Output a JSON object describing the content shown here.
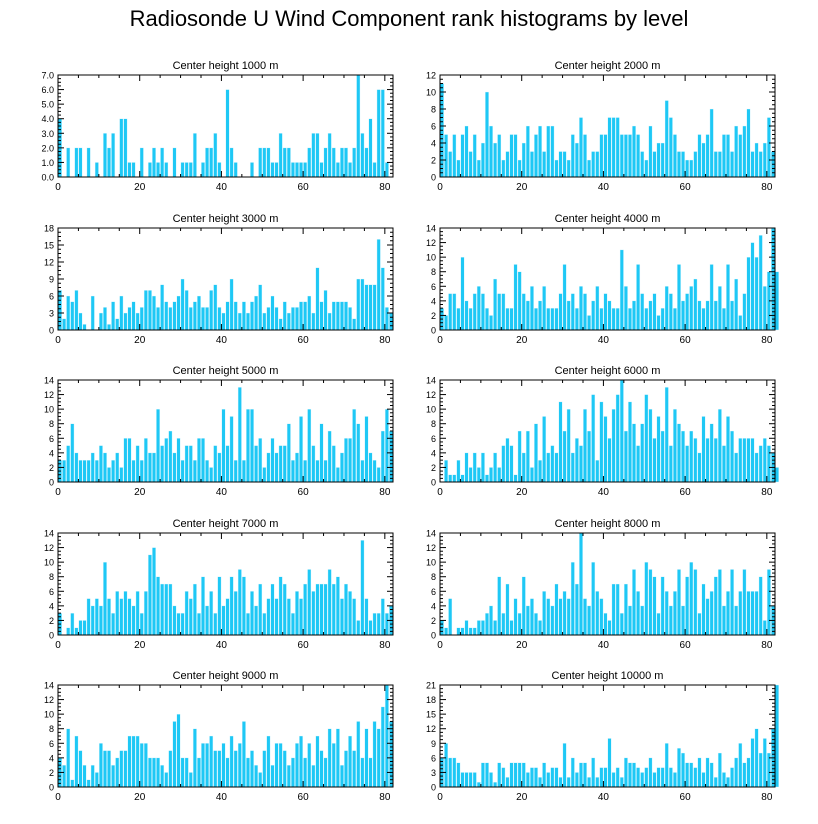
{
  "title": "Radiosonde U Wind Component rank histograms by level",
  "colors": {
    "bar": "#1ec8f5",
    "bar_edge": "#e8f8fe",
    "axis": "#000000"
  },
  "chart_data": [
    {
      "type": "bar",
      "title": "Center height 1000 m",
      "xlim": [
        0,
        82
      ],
      "ylim": [
        0,
        7.0
      ],
      "xticks": [
        0,
        20,
        40,
        60,
        80
      ],
      "yticks": [
        0.0,
        1.0,
        2.0,
        3.0,
        4.0,
        5.0,
        6.0,
        7.0
      ],
      "ytick_labels": [
        "0.0",
        "1.0",
        "2.0",
        "3.0",
        "4.0",
        "5.0",
        "6.0",
        "7.0"
      ],
      "values": [
        4,
        0,
        2,
        0,
        2,
        2,
        0,
        2,
        0,
        1,
        0,
        3,
        2,
        3,
        0,
        4,
        4,
        1,
        1,
        0,
        2,
        0,
        1,
        2,
        1,
        2,
        1,
        0,
        2,
        0,
        1,
        1,
        1,
        3,
        0,
        1,
        2,
        2,
        3,
        1,
        0,
        6,
        2,
        1,
        0,
        0,
        0,
        1,
        0,
        2,
        2,
        2,
        1,
        1,
        3,
        2,
        2,
        1,
        1,
        1,
        1,
        2,
        3,
        3,
        1,
        2,
        3,
        2,
        1,
        2,
        2,
        1,
        2,
        7,
        3,
        2,
        4,
        1,
        6,
        6,
        1
      ]
    },
    {
      "type": "bar",
      "title": "Center height 2000 m",
      "xlim": [
        0,
        82
      ],
      "ylim": [
        0,
        12
      ],
      "xticks": [
        0,
        20,
        40,
        60,
        80
      ],
      "yticks": [
        0,
        2,
        4,
        6,
        8,
        10,
        12
      ],
      "ytick_labels": [
        "0",
        "2",
        "4",
        "6",
        "8",
        "10",
        "12"
      ],
      "values": [
        11,
        5,
        3,
        5,
        2,
        5,
        6,
        3,
        5,
        2,
        4,
        10,
        6,
        4,
        5,
        2,
        3,
        5,
        5,
        2,
        4,
        6,
        3,
        5,
        6,
        3,
        6,
        6,
        2,
        3,
        3,
        2,
        5,
        4,
        7,
        5,
        2,
        3,
        3,
        5,
        5,
        7,
        7,
        7,
        5,
        5,
        5,
        6,
        5,
        3,
        2,
        6,
        3,
        4,
        4,
        9,
        7,
        5,
        3,
        3,
        2,
        2,
        3,
        5,
        4,
        5,
        8,
        3,
        3,
        5,
        5,
        3,
        6,
        5,
        6,
        8,
        3,
        4,
        3,
        4,
        7,
        3
      ]
    },
    {
      "type": "bar",
      "title": "Center height 3000 m",
      "xlim": [
        0,
        82
      ],
      "ylim": [
        0,
        18
      ],
      "xticks": [
        0,
        20,
        40,
        60,
        80
      ],
      "yticks": [
        0,
        3,
        6,
        9,
        12,
        15,
        18
      ],
      "ytick_labels": [
        "0",
        "3",
        "6",
        "9",
        "12",
        "15",
        "18"
      ],
      "values": [
        7,
        2,
        6,
        5,
        7,
        3,
        1,
        0,
        6,
        0,
        3,
        4,
        1,
        5,
        2,
        6,
        3,
        4,
        5,
        3,
        4,
        7,
        7,
        6,
        4,
        8,
        5,
        4,
        5,
        6,
        9,
        7,
        4,
        5,
        6,
        4,
        4,
        7,
        8,
        4,
        3,
        5,
        9,
        5,
        3,
        5,
        3,
        5,
        6,
        8,
        3,
        4,
        6,
        4,
        2,
        5,
        3,
        4,
        4,
        5,
        5,
        6,
        3,
        11,
        5,
        7,
        3,
        5,
        5,
        5,
        5,
        4,
        2,
        9,
        9,
        8,
        8,
        8,
        16,
        11,
        4,
        3
      ]
    },
    {
      "type": "bar",
      "title": "Center height 4000 m",
      "xlim": [
        0,
        82
      ],
      "ylim": [
        0,
        14
      ],
      "xticks": [
        0,
        20,
        40,
        60,
        80
      ],
      "yticks": [
        0,
        2,
        4,
        6,
        8,
        10,
        12,
        14
      ],
      "ytick_labels": [
        "0",
        "2",
        "4",
        "6",
        "8",
        "10",
        "12",
        "14"
      ],
      "values": [
        3,
        2,
        5,
        5,
        3,
        10,
        4,
        3,
        5,
        6,
        5,
        3,
        2,
        7,
        5,
        5,
        3,
        3,
        9,
        8,
        5,
        4,
        6,
        3,
        4,
        6,
        3,
        3,
        3,
        5,
        9,
        4,
        5,
        3,
        6,
        5,
        2,
        4,
        6,
        3,
        5,
        4,
        3,
        3,
        11,
        6,
        3,
        4,
        9,
        5,
        3,
        4,
        5,
        2,
        3,
        6,
        5,
        3,
        9,
        4,
        5,
        6,
        7,
        4,
        3,
        4,
        9,
        4,
        6,
        3,
        9,
        4,
        7,
        2,
        5,
        10,
        12,
        10,
        13,
        6,
        8,
        14,
        8
      ]
    },
    {
      "type": "bar",
      "title": "Center height 5000 m",
      "xlim": [
        0,
        82
      ],
      "ylim": [
        0,
        14
      ],
      "xticks": [
        0,
        20,
        40,
        60,
        80
      ],
      "yticks": [
        0,
        2,
        4,
        6,
        8,
        10,
        12,
        14
      ],
      "ytick_labels": [
        "0",
        "2",
        "4",
        "6",
        "8",
        "10",
        "12",
        "14"
      ],
      "values": [
        3,
        3,
        5,
        8,
        4,
        3,
        3,
        3,
        4,
        3,
        5,
        4,
        2,
        3,
        4,
        2,
        6,
        6,
        3,
        5,
        3,
        6,
        4,
        4,
        10,
        5,
        6,
        7,
        4,
        6,
        3,
        5,
        5,
        3,
        6,
        6,
        3,
        2,
        5,
        4,
        10,
        5,
        9,
        3,
        13,
        3,
        10,
        10,
        5,
        6,
        2,
        4,
        6,
        4,
        5,
        5,
        8,
        3,
        4,
        9,
        3,
        10,
        5,
        3,
        8,
        3,
        7,
        5,
        2,
        4,
        6,
        6,
        10,
        8,
        3,
        9,
        4,
        3,
        2,
        7,
        10,
        7
      ]
    },
    {
      "type": "bar",
      "title": "Center height 6000 m",
      "xlim": [
        0,
        82
      ],
      "ylim": [
        0,
        14
      ],
      "xticks": [
        0,
        20,
        40,
        60,
        80
      ],
      "yticks": [
        0,
        2,
        4,
        6,
        8,
        10,
        12,
        14
      ],
      "ytick_labels": [
        "0",
        "2",
        "4",
        "6",
        "8",
        "10",
        "12",
        "14"
      ],
      "values": [
        0,
        3,
        1,
        1,
        3,
        1,
        4,
        2,
        4,
        2,
        4,
        1,
        2,
        4,
        2,
        5,
        6,
        5,
        1,
        7,
        4,
        7,
        2,
        8,
        3,
        9,
        4,
        5,
        4,
        11,
        7,
        10,
        4,
        6,
        5,
        10,
        7,
        12,
        3,
        11,
        9,
        6,
        10,
        12,
        14,
        7,
        11,
        8,
        5,
        8,
        12,
        10,
        6,
        9,
        7,
        13,
        5,
        10,
        8,
        7,
        5,
        7,
        6,
        4,
        9,
        6,
        8,
        6,
        10,
        5,
        9,
        7,
        4,
        6,
        6,
        6,
        6,
        4,
        5,
        6,
        5,
        4,
        2
      ]
    },
    {
      "type": "bar",
      "title": "Center height 7000 m",
      "xlim": [
        0,
        82
      ],
      "ylim": [
        0,
        14
      ],
      "xticks": [
        0,
        20,
        40,
        60,
        80
      ],
      "yticks": [
        0,
        2,
        4,
        6,
        8,
        10,
        12,
        14
      ],
      "ytick_labels": [
        "0",
        "2",
        "4",
        "6",
        "8",
        "10",
        "12",
        "14"
      ],
      "values": [
        3,
        0,
        1,
        3,
        1,
        2,
        2,
        5,
        4,
        5,
        4,
        10,
        5,
        3,
        6,
        5,
        6,
        5,
        4,
        6,
        3,
        6,
        11,
        12,
        8,
        7,
        7,
        7,
        4,
        3,
        3,
        6,
        5,
        7,
        3,
        8,
        4,
        6,
        3,
        8,
        4,
        5,
        8,
        6,
        9,
        8,
        3,
        6,
        4,
        7,
        3,
        5,
        7,
        5,
        8,
        7,
        5,
        3,
        6,
        5,
        7,
        9,
        6,
        7,
        7,
        7,
        9,
        7,
        8,
        5,
        7,
        6,
        5,
        2,
        13,
        5,
        2,
        3,
        3,
        5,
        3,
        4
      ]
    },
    {
      "type": "bar",
      "title": "Center height 8000 m",
      "xlim": [
        0,
        82
      ],
      "ylim": [
        0,
        14
      ],
      "xticks": [
        0,
        20,
        40,
        60,
        80
      ],
      "yticks": [
        0,
        2,
        4,
        6,
        8,
        10,
        12,
        14
      ],
      "ytick_labels": [
        "0",
        "2",
        "4",
        "6",
        "8",
        "10",
        "12",
        "14"
      ],
      "values": [
        2,
        1,
        5,
        0,
        1,
        1,
        2,
        1,
        1,
        2,
        2,
        3,
        4,
        2,
        8,
        3,
        7,
        2,
        5,
        3,
        8,
        4,
        5,
        3,
        2,
        6,
        5,
        4,
        7,
        5,
        6,
        5,
        10,
        7,
        14,
        5,
        4,
        10,
        6,
        5,
        3,
        2,
        7,
        7,
        3,
        7,
        4,
        9,
        6,
        4,
        10,
        9,
        8,
        3,
        8,
        6,
        4,
        6,
        9,
        4,
        8,
        10,
        9,
        3,
        7,
        5,
        6,
        8,
        9,
        4,
        6,
        9,
        4,
        6,
        9,
        6,
        6,
        6,
        8,
        2,
        9,
        4
      ]
    },
    {
      "type": "bar",
      "title": "Center height 9000 m",
      "xlim": [
        0,
        82
      ],
      "ylim": [
        0,
        14
      ],
      "xticks": [
        0,
        20,
        40,
        60,
        80
      ],
      "yticks": [
        0,
        2,
        4,
        6,
        8,
        10,
        12,
        14
      ],
      "ytick_labels": [
        "0",
        "2",
        "4",
        "6",
        "8",
        "10",
        "12",
        "14"
      ],
      "values": [
        4,
        3,
        8,
        1,
        7,
        5,
        3,
        1,
        3,
        2,
        6,
        5,
        5,
        3,
        4,
        5,
        5,
        7,
        7,
        7,
        6,
        6,
        4,
        4,
        4,
        3,
        2,
        5,
        9,
        10,
        4,
        4,
        2,
        8,
        4,
        6,
        6,
        7,
        5,
        5,
        6,
        4,
        7,
        5,
        6,
        9,
        4,
        5,
        3,
        2,
        5,
        7,
        3,
        6,
        6,
        5,
        3,
        4,
        6,
        7,
        4,
        6,
        3,
        7,
        5,
        4,
        8,
        6,
        8,
        3,
        5,
        7,
        5,
        9,
        4,
        8,
        4,
        9,
        8,
        11,
        14,
        9
      ]
    },
    {
      "type": "bar",
      "title": "Center height 10000 m",
      "xlim": [
        0,
        82
      ],
      "ylim": [
        0,
        21
      ],
      "xticks": [
        0,
        20,
        40,
        60,
        80
      ],
      "yticks": [
        0,
        3,
        6,
        9,
        12,
        15,
        18,
        21
      ],
      "ytick_labels": [
        "0",
        "3",
        "6",
        "9",
        "12",
        "15",
        "18",
        "21"
      ],
      "values": [
        6,
        9,
        6,
        6,
        5,
        3,
        3,
        3,
        3,
        1,
        5,
        5,
        3,
        1,
        5,
        4,
        2,
        5,
        5,
        5,
        5,
        3,
        4,
        4,
        2,
        5,
        3,
        4,
        4,
        2,
        9,
        2,
        6,
        3,
        5,
        5,
        2,
        6,
        2,
        4,
        4,
        10,
        3,
        4,
        2,
        6,
        5,
        5,
        4,
        3,
        4,
        6,
        3,
        4,
        4,
        9,
        4,
        3,
        8,
        7,
        5,
        5,
        4,
        6,
        3,
        6,
        5,
        2,
        7,
        3,
        2,
        4,
        6,
        9,
        5,
        6,
        10,
        12,
        7,
        10,
        7,
        12,
        21
      ]
    }
  ]
}
